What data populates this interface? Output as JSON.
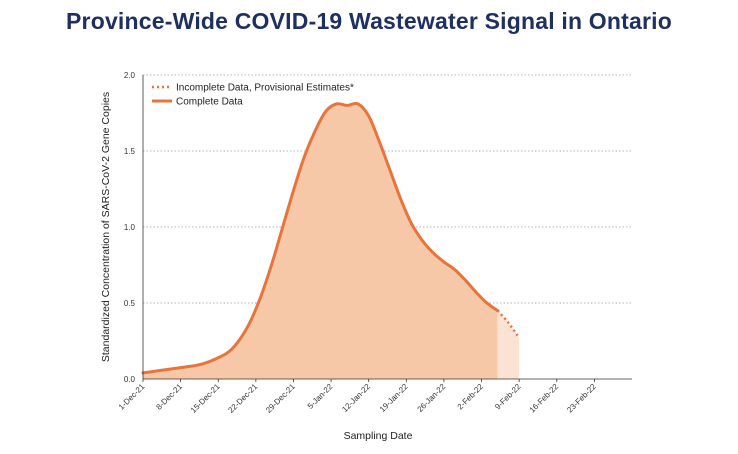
{
  "title": "Province-Wide COVID-19 Wastewater Signal in Ontario",
  "colors": {
    "title": "#1f3060",
    "line": "#e8743b",
    "fill_complete": "#f7c8a8",
    "fill_incomplete": "#fbe3d3",
    "grid": "#9a9a9a"
  },
  "chart_data": {
    "type": "area",
    "xlabel": "Sampling Date",
    "ylabel": "Standardized Concentration of SARS-CoV-2 Gene Copies",
    "ylim": [
      0,
      2.0
    ],
    "yticks": [
      "0.0",
      "0.5",
      "1.0",
      "1.5",
      "2.0"
    ],
    "xticks": [
      "1-Dec-21",
      "8-Dec-21",
      "15-Dec-21",
      "22-Dec-21",
      "29-Dec-21",
      "5-Jan-22",
      "12-Jan-22",
      "19-Jan-22",
      "26-Jan-22",
      "2-Feb-22",
      "9-Feb-22",
      "16-Feb-22",
      "23-Feb-22"
    ],
    "grid": true,
    "legend_position": "top-left",
    "series": [
      {
        "name": "Complete Data",
        "style": "solid",
        "x": [
          "2021-12-01",
          "2021-12-03",
          "2021-12-05",
          "2021-12-07",
          "2021-12-09",
          "2021-12-11",
          "2021-12-13",
          "2021-12-15",
          "2021-12-17",
          "2021-12-19",
          "2021-12-21",
          "2021-12-23",
          "2021-12-25",
          "2021-12-27",
          "2021-12-29",
          "2021-12-31",
          "2022-01-02",
          "2022-01-04",
          "2022-01-06",
          "2022-01-08",
          "2022-01-10",
          "2022-01-12",
          "2022-01-14",
          "2022-01-16",
          "2022-01-18",
          "2022-01-20",
          "2022-01-22",
          "2022-01-24",
          "2022-01-26",
          "2022-01-28",
          "2022-01-30",
          "2022-02-01",
          "2022-02-03",
          "2022-02-05"
        ],
        "values": [
          0.04,
          0.05,
          0.06,
          0.07,
          0.08,
          0.09,
          0.11,
          0.14,
          0.18,
          0.26,
          0.38,
          0.55,
          0.76,
          1.0,
          1.24,
          1.46,
          1.63,
          1.76,
          1.81,
          1.8,
          1.81,
          1.73,
          1.56,
          1.37,
          1.18,
          1.02,
          0.91,
          0.83,
          0.77,
          0.72,
          0.65,
          0.57,
          0.5,
          0.45
        ]
      },
      {
        "name": "Incomplete Data, Provisional Estimates*",
        "style": "dotted",
        "x": [
          "2022-02-05",
          "2022-02-07",
          "2022-02-09"
        ],
        "values": [
          0.45,
          0.37,
          0.27
        ]
      }
    ]
  }
}
